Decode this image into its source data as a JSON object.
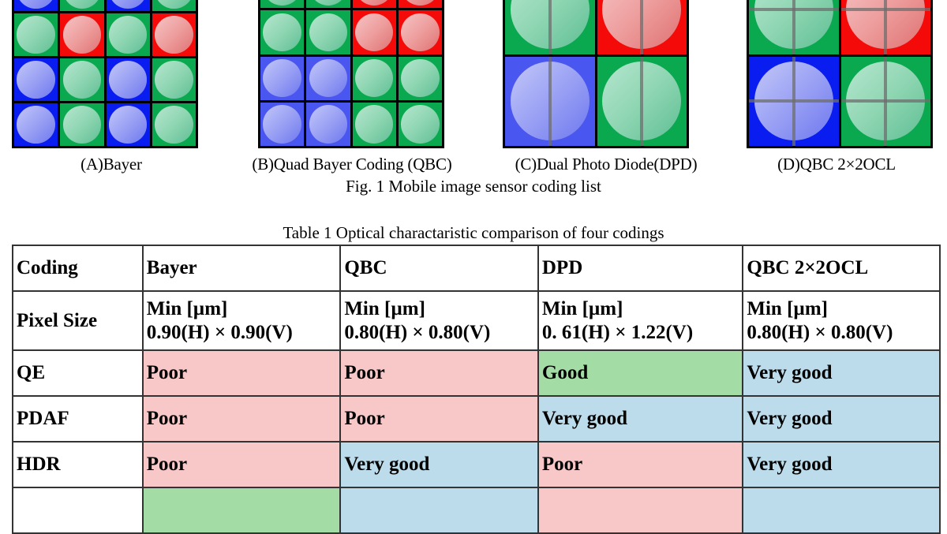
{
  "figure": {
    "panels": [
      {
        "id": "A",
        "caption": "(A)Bayer",
        "grid_rows": 5,
        "grid_cols": 4,
        "split": "none",
        "cells": [
          [
            "g",
            "r",
            "g",
            "r"
          ],
          [
            "b",
            "g",
            "b",
            "g"
          ],
          [
            "g",
            "r",
            "g",
            "r"
          ],
          [
            "b",
            "g",
            "b",
            "g"
          ],
          [
            "b",
            "g",
            "b",
            "g"
          ]
        ]
      },
      {
        "id": "B",
        "caption": "(B)Quad Bayer Coding (QBC)",
        "grid_rows": 4,
        "grid_cols": 4,
        "split": "none",
        "cells": [
          [
            "g",
            "g",
            "r",
            "r"
          ],
          [
            "g",
            "g",
            "r",
            "r"
          ],
          [
            "b2",
            "b2",
            "g",
            "g"
          ],
          [
            "b2",
            "b2",
            "g",
            "g"
          ]
        ]
      },
      {
        "id": "C",
        "caption": "(C)Dual Photo Diode(DPD)",
        "grid_rows": 2,
        "grid_cols": 2,
        "split": "vertical",
        "cells": [
          [
            "g",
            "r"
          ],
          [
            "b2",
            "g"
          ]
        ]
      },
      {
        "id": "D",
        "caption": "(D)QBC 2×2OCL",
        "grid_rows": 2,
        "grid_cols": 2,
        "split": "cross",
        "cells": [
          [
            "g",
            "r"
          ],
          [
            "b",
            "g"
          ]
        ]
      }
    ],
    "title": "Fig. 1 Mobile image sensor coding list"
  },
  "table": {
    "title": "Table 1 Optical charactaristic comparison of four codings",
    "header": [
      "Coding",
      "Bayer",
      "QBC",
      "DPD",
      "QBC 2×2OCL"
    ],
    "pixel_size": {
      "label": "Pixel Size",
      "values": [
        {
          "line1": "Min [µm]",
          "line2": "0.90(H) × 0.90(V)"
        },
        {
          "line1": "Min [µm]",
          "line2": "0.80(H) × 0.80(V)"
        },
        {
          "line1": "Min [µm]",
          "line2": "0. 61(H) × 1.22(V)"
        },
        {
          "line1": "Min [µm]",
          "line2": "0.80(H) × 0.80(V)"
        }
      ]
    },
    "rows": [
      {
        "label": "QE",
        "cells": [
          {
            "text": "Poor",
            "color": "pink"
          },
          {
            "text": "Poor",
            "color": "pink"
          },
          {
            "text": "Good",
            "color": "green"
          },
          {
            "text": "Very good",
            "color": "blue"
          }
        ]
      },
      {
        "label": "PDAF",
        "cells": [
          {
            "text": "Poor",
            "color": "pink"
          },
          {
            "text": "Poor",
            "color": "pink"
          },
          {
            "text": "Very good",
            "color": "blue"
          },
          {
            "text": "Very good",
            "color": "blue"
          }
        ]
      },
      {
        "label": "HDR",
        "cells": [
          {
            "text": "Poor",
            "color": "pink"
          },
          {
            "text": "Very good",
            "color": "blue"
          },
          {
            "text": "Poor",
            "color": "pink"
          },
          {
            "text": "Very good",
            "color": "blue"
          }
        ]
      },
      {
        "label": "",
        "cells": [
          {
            "text": "",
            "color": "green"
          },
          {
            "text": "",
            "color": "blue"
          },
          {
            "text": "",
            "color": "pink"
          },
          {
            "text": "",
            "color": "blue"
          }
        ]
      }
    ],
    "colors": {
      "pink": "#f8c8c8",
      "blue": "#bcdcec",
      "green": "#a3dca4"
    }
  }
}
